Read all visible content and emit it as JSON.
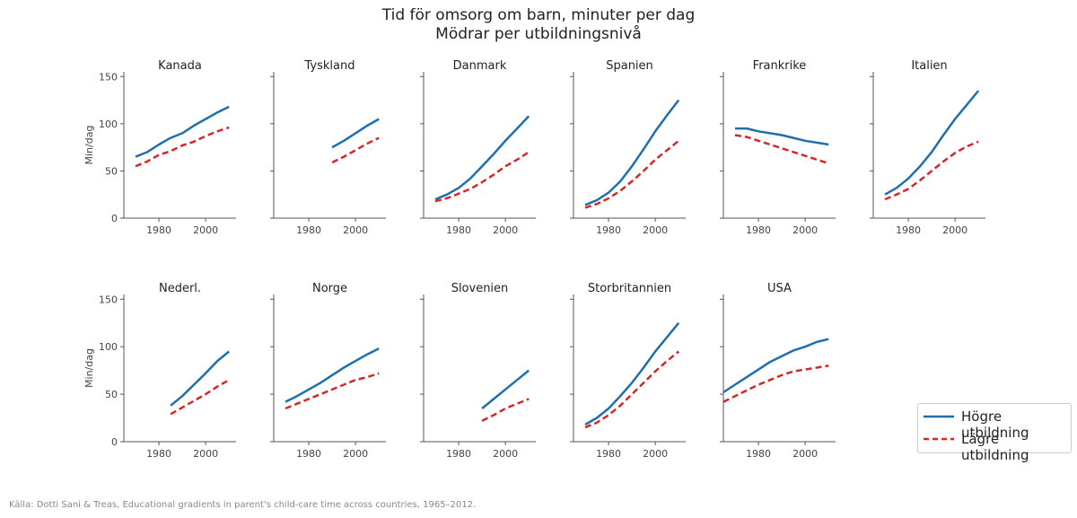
{
  "title": "Tid för omsorg om barn, minuter per dag",
  "subtitle": "Mödrar per utbildningsnivå",
  "source": "Källa: Dotti Sani & Treas, Educational gradients in parent's child-care time across countries, 1965–2012.",
  "legend": {
    "high": "Högre utbildning",
    "low": "Lägre utbildning"
  },
  "colors": {
    "high": "#1f6fae",
    "low": "#d62728",
    "axis": "#555555"
  },
  "chart_data": {
    "type": "line",
    "ylabel": "Min/dag",
    "ylim": [
      0,
      155
    ],
    "xlim": [
      1965,
      2013
    ],
    "yticks": [
      0,
      50,
      100,
      150
    ],
    "xticks": [
      1980,
      2000
    ],
    "series_names": [
      "Högre utbildning",
      "Lägre utbildning"
    ],
    "panels": [
      {
        "name": "Kanada",
        "high": {
          "x": [
            1970,
            1975,
            1980,
            1985,
            1990,
            1995,
            2000,
            2005,
            2010
          ],
          "y": [
            65,
            70,
            78,
            85,
            90,
            98,
            105,
            112,
            118
          ]
        },
        "low": {
          "x": [
            1970,
            1975,
            1980,
            1985,
            1990,
            1995,
            2000,
            2005,
            2010
          ],
          "y": [
            55,
            60,
            67,
            71,
            77,
            81,
            87,
            92,
            96
          ]
        }
      },
      {
        "name": "Tyskland",
        "high": {
          "x": [
            1990,
            1995,
            2000,
            2005,
            2010
          ],
          "y": [
            75,
            82,
            90,
            98,
            105
          ]
        },
        "low": {
          "x": [
            1990,
            1995,
            2000,
            2005,
            2010
          ],
          "y": [
            59,
            65,
            72,
            79,
            85
          ]
        }
      },
      {
        "name": "Danmark",
        "high": {
          "x": [
            1970,
            1975,
            1980,
            1985,
            1990,
            1995,
            2000,
            2005,
            2010
          ],
          "y": [
            20,
            25,
            32,
            42,
            55,
            68,
            82,
            95,
            108
          ]
        },
        "low": {
          "x": [
            1970,
            1975,
            1980,
            1985,
            1990,
            1995,
            2000,
            2005,
            2010
          ],
          "y": [
            18,
            21,
            26,
            31,
            38,
            46,
            55,
            62,
            70
          ]
        }
      },
      {
        "name": "Spanien",
        "high": {
          "x": [
            1970,
            1975,
            1980,
            1985,
            1990,
            1995,
            2000,
            2005,
            2010
          ],
          "y": [
            14,
            19,
            27,
            39,
            55,
            73,
            92,
            109,
            125
          ]
        },
        "low": {
          "x": [
            1970,
            1975,
            1980,
            1985,
            1990,
            1995,
            2000,
            2005,
            2010
          ],
          "y": [
            11,
            15,
            21,
            29,
            39,
            50,
            62,
            72,
            82
          ]
        }
      },
      {
        "name": "Frankrike",
        "high": {
          "x": [
            1970,
            1975,
            1980,
            1985,
            1990,
            1995,
            2000,
            2005,
            2010
          ],
          "y": [
            95,
            95,
            92,
            90,
            88,
            85,
            82,
            80,
            78
          ]
        },
        "low": {
          "x": [
            1970,
            1975,
            1980,
            1985,
            1990,
            1995,
            2000,
            2005,
            2010
          ],
          "y": [
            88,
            86,
            82,
            78,
            74,
            70,
            66,
            62,
            58
          ]
        }
      },
      {
        "name": "Italien",
        "high": {
          "x": [
            1970,
            1975,
            1980,
            1985,
            1990,
            1995,
            2000,
            2005,
            2010
          ],
          "y": [
            25,
            32,
            42,
            55,
            70,
            88,
            105,
            120,
            135
          ]
        },
        "low": {
          "x": [
            1970,
            1975,
            1980,
            1985,
            1990,
            1995,
            2000,
            2005,
            2010
          ],
          "y": [
            20,
            25,
            31,
            40,
            50,
            60,
            69,
            76,
            81
          ]
        }
      },
      {
        "name": "Nederl.",
        "high": {
          "x": [
            1985,
            1990,
            1995,
            2000,
            2005,
            2010
          ],
          "y": [
            38,
            48,
            60,
            72,
            85,
            95
          ]
        },
        "low": {
          "x": [
            1985,
            1990,
            1995,
            2000,
            2005,
            2010
          ],
          "y": [
            29,
            36,
            43,
            50,
            58,
            65
          ]
        }
      },
      {
        "name": "Norge",
        "high": {
          "x": [
            1970,
            1975,
            1980,
            1985,
            1990,
            1995,
            2000,
            2005,
            2010
          ],
          "y": [
            42,
            48,
            55,
            62,
            70,
            78,
            85,
            92,
            98
          ]
        },
        "low": {
          "x": [
            1970,
            1975,
            1980,
            1985,
            1990,
            1995,
            2000,
            2005,
            2010
          ],
          "y": [
            35,
            40,
            45,
            50,
            55,
            60,
            65,
            68,
            72
          ]
        }
      },
      {
        "name": "Slovenien",
        "high": {
          "x": [
            1990,
            1995,
            2000,
            2005,
            2010
          ],
          "y": [
            35,
            45,
            55,
            65,
            75
          ]
        },
        "low": {
          "x": [
            1990,
            1995,
            2000,
            2005,
            2010
          ],
          "y": [
            22,
            28,
            35,
            40,
            45
          ]
        }
      },
      {
        "name": "Storbritannien",
        "high": {
          "x": [
            1970,
            1975,
            1980,
            1985,
            1990,
            1995,
            2000,
            2005,
            2010
          ],
          "y": [
            18,
            25,
            35,
            48,
            62,
            78,
            95,
            110,
            125
          ]
        },
        "low": {
          "x": [
            1970,
            1975,
            1980,
            1985,
            1990,
            1995,
            2000,
            2005,
            2010
          ],
          "y": [
            15,
            20,
            28,
            38,
            50,
            62,
            74,
            85,
            95
          ]
        }
      },
      {
        "name": "USA",
        "high": {
          "x": [
            1965,
            1970,
            1975,
            1980,
            1985,
            1990,
            1995,
            2000,
            2005,
            2010
          ],
          "y": [
            52,
            60,
            68,
            76,
            84,
            90,
            96,
            100,
            105,
            108
          ]
        },
        "low": {
          "x": [
            1965,
            1970,
            1975,
            1980,
            1985,
            1990,
            1995,
            2000,
            2005,
            2010
          ],
          "y": [
            42,
            48,
            54,
            60,
            65,
            70,
            74,
            76,
            78,
            80
          ]
        }
      }
    ]
  }
}
